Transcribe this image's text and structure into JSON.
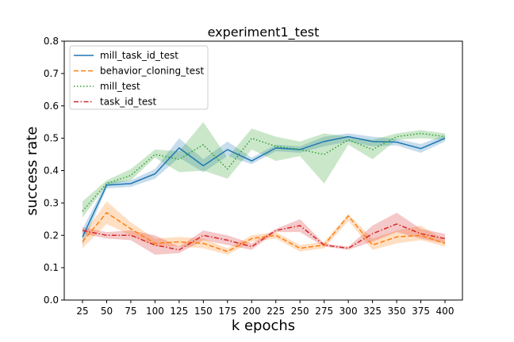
{
  "chart_data": {
    "type": "line",
    "title": "experiment1_test",
    "xlabel": "k epochs",
    "ylabel": "success rate",
    "categories": [
      "25",
      "50",
      "75",
      "100",
      "125",
      "150",
      "175",
      "200",
      "225",
      "250",
      "275",
      "300",
      "325",
      "350",
      "375",
      "400"
    ],
    "ylim": [
      0,
      0.8
    ],
    "yticks": [
      "0.0",
      "0.1",
      "0.2",
      "0.3",
      "0.4",
      "0.5",
      "0.6",
      "0.7",
      "0.8"
    ],
    "grid": false,
    "legend_position": "top-left",
    "series": [
      {
        "name": "mill_task_id_test",
        "color": "#1f77b4",
        "style": "solid",
        "values": [
          0.195,
          0.355,
          0.36,
          0.39,
          0.47,
          0.415,
          0.465,
          0.43,
          0.47,
          0.465,
          0.49,
          0.505,
          0.49,
          0.488,
          0.468,
          0.5
        ],
        "lower": [
          0.17,
          0.345,
          0.35,
          0.375,
          0.44,
          0.395,
          0.445,
          0.42,
          0.46,
          0.455,
          0.475,
          0.49,
          0.475,
          0.478,
          0.455,
          0.49
        ],
        "upper": [
          0.22,
          0.365,
          0.37,
          0.405,
          0.5,
          0.435,
          0.49,
          0.44,
          0.48,
          0.475,
          0.505,
          0.515,
          0.505,
          0.498,
          0.482,
          0.51
        ]
      },
      {
        "name": "behavior_cloning_test",
        "color": "#ff7f0e",
        "style": "dashed",
        "values": [
          0.18,
          0.27,
          0.22,
          0.175,
          0.18,
          0.175,
          0.15,
          0.19,
          0.2,
          0.16,
          0.17,
          0.26,
          0.17,
          0.195,
          0.2,
          0.175
        ],
        "lower": [
          0.16,
          0.235,
          0.2,
          0.165,
          0.165,
          0.16,
          0.14,
          0.18,
          0.19,
          0.15,
          0.16,
          0.245,
          0.155,
          0.175,
          0.185,
          0.165
        ],
        "upper": [
          0.2,
          0.305,
          0.24,
          0.19,
          0.195,
          0.19,
          0.16,
          0.2,
          0.21,
          0.17,
          0.18,
          0.265,
          0.19,
          0.215,
          0.23,
          0.185
        ]
      },
      {
        "name": "mill_test",
        "color": "#2ca02c",
        "style": "dotted",
        "values": [
          0.275,
          0.36,
          0.385,
          0.45,
          0.435,
          0.48,
          0.405,
          0.5,
          0.475,
          0.465,
          0.45,
          0.495,
          0.465,
          0.505,
          0.515,
          0.505
        ],
        "lower": [
          0.255,
          0.355,
          0.37,
          0.44,
          0.395,
          0.4,
          0.375,
          0.465,
          0.43,
          0.445,
          0.36,
          0.48,
          0.435,
          0.495,
          0.5,
          0.495
        ],
        "upper": [
          0.305,
          0.37,
          0.405,
          0.465,
          0.46,
          0.55,
          0.44,
          0.53,
          0.505,
          0.49,
          0.515,
          0.505,
          0.495,
          0.515,
          0.525,
          0.515
        ]
      },
      {
        "name": "task_id_test",
        "color": "#d62728",
        "style": "dashdot",
        "values": [
          0.215,
          0.2,
          0.2,
          0.17,
          0.155,
          0.2,
          0.185,
          0.165,
          0.215,
          0.23,
          0.17,
          0.16,
          0.205,
          0.235,
          0.205,
          0.19
        ],
        "lower": [
          0.205,
          0.19,
          0.185,
          0.14,
          0.145,
          0.185,
          0.17,
          0.155,
          0.21,
          0.21,
          0.165,
          0.155,
          0.18,
          0.21,
          0.19,
          0.175
        ],
        "upper": [
          0.225,
          0.21,
          0.215,
          0.2,
          0.165,
          0.215,
          0.2,
          0.175,
          0.22,
          0.25,
          0.175,
          0.165,
          0.23,
          0.27,
          0.22,
          0.205
        ]
      }
    ]
  }
}
